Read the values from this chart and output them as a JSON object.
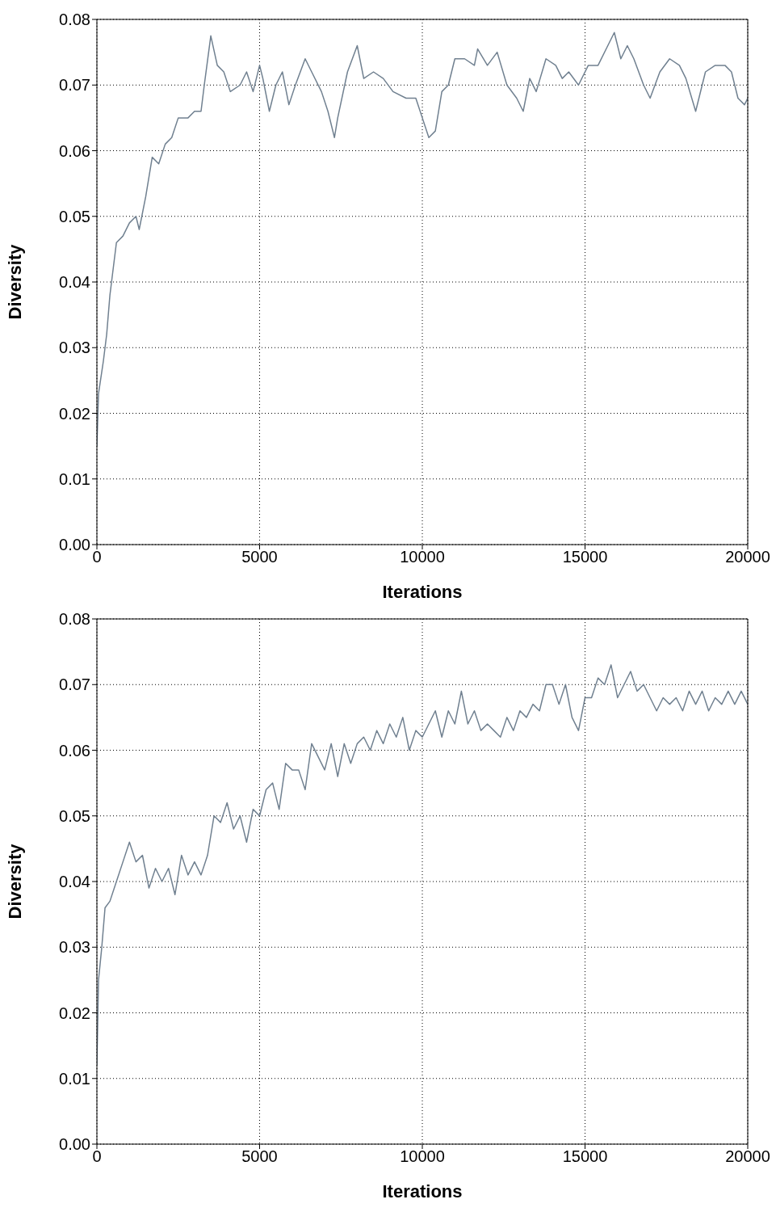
{
  "chart_data": [
    {
      "type": "line",
      "xlabel": "Iterations",
      "ylabel": "Diversity",
      "xlim": [
        0,
        20000
      ],
      "xticks": [
        0,
        5000,
        10000,
        15000,
        20000
      ],
      "ylim": [
        0,
        0.08
      ],
      "yticks": [
        {
          "value": 0,
          "label": "0.00"
        },
        {
          "value": 0.01,
          "label": "0.01"
        },
        {
          "value": 0.02,
          "label": "0.02"
        },
        {
          "value": 0.03,
          "label": "0.03"
        },
        {
          "value": 0.04,
          "label": "0.04"
        },
        {
          "value": 0.05,
          "label": "0.05"
        },
        {
          "value": 0.06,
          "label": "0.06"
        },
        {
          "value": 0.07,
          "label": "0.07"
        },
        {
          "value": 0.08,
          "label": "0.08"
        }
      ],
      "grid": true,
      "line_style": "solid",
      "marker": "none",
      "x": [
        0,
        50,
        200,
        300,
        400,
        500,
        600,
        800,
        1000,
        1200,
        1300,
        1500,
        1700,
        1900,
        2100,
        2300,
        2500,
        2800,
        3000,
        3200,
        3300,
        3500,
        3700,
        3900,
        4100,
        4400,
        4600,
        4800,
        5000,
        5100,
        5300,
        5500,
        5700,
        5900,
        6100,
        6400,
        6600,
        6900,
        7100,
        7300,
        7400,
        7700,
        8000,
        8200,
        8500,
        8800,
        9100,
        9500,
        9800,
        10000,
        10200,
        10400,
        10600,
        10800,
        11000,
        11300,
        11600,
        11700,
        12000,
        12300,
        12600,
        12900,
        13100,
        13300,
        13500,
        13800,
        14100,
        14300,
        14500,
        14800,
        15100,
        15400,
        15700,
        15900,
        16100,
        16300,
        16500,
        16800,
        17000,
        17300,
        17600,
        17900,
        18100,
        18400,
        18700,
        19000,
        19300,
        19500,
        19700,
        19900,
        20000
      ],
      "series": [
        {
          "color": "#708090",
          "values": [
            0.015,
            0.023,
            0.028,
            0.032,
            0.038,
            0.042,
            0.046,
            0.047,
            0.049,
            0.05,
            0.048,
            0.053,
            0.059,
            0.058,
            0.061,
            0.062,
            0.065,
            0.065,
            0.066,
            0.066,
            0.07,
            0.0775,
            0.073,
            0.072,
            0.069,
            0.07,
            0.072,
            0.069,
            0.073,
            0.071,
            0.066,
            0.07,
            0.072,
            0.067,
            0.07,
            0.074,
            0.072,
            0.069,
            0.066,
            0.062,
            0.065,
            0.072,
            0.076,
            0.071,
            0.072,
            0.071,
            0.069,
            0.068,
            0.068,
            0.065,
            0.062,
            0.063,
            0.069,
            0.07,
            0.074,
            0.074,
            0.073,
            0.0755,
            0.073,
            0.075,
            0.07,
            0.068,
            0.066,
            0.071,
            0.069,
            0.074,
            0.073,
            0.071,
            0.072,
            0.07,
            0.073,
            0.073,
            0.076,
            0.078,
            0.074,
            0.076,
            0.074,
            0.07,
            0.068,
            0.072,
            0.074,
            0.073,
            0.071,
            0.066,
            0.072,
            0.073,
            0.073,
            0.072,
            0.068,
            0.067,
            0.068
          ]
        }
      ]
    },
    {
      "type": "line",
      "xlabel": "Iterations",
      "ylabel": "Diversity",
      "xlim": [
        0,
        20000
      ],
      "xticks": [
        0,
        5000,
        10000,
        15000,
        20000
      ],
      "ylim": [
        0,
        0.08
      ],
      "yticks": [
        {
          "value": 0,
          "label": "0.00"
        },
        {
          "value": 0.01,
          "label": "0.01"
        },
        {
          "value": 0.02,
          "label": "0.02"
        },
        {
          "value": 0.03,
          "label": "0.03"
        },
        {
          "value": 0.04,
          "label": "0.04"
        },
        {
          "value": 0.05,
          "label": "0.05"
        },
        {
          "value": 0.06,
          "label": "0.06"
        },
        {
          "value": 0.07,
          "label": "0.07"
        },
        {
          "value": 0.08,
          "label": "0.08"
        }
      ],
      "grid": true,
      "line_style": "solid",
      "marker": "none",
      "x": [
        0,
        50,
        150,
        250,
        400,
        600,
        800,
        1000,
        1200,
        1400,
        1600,
        1800,
        2000,
        2200,
        2400,
        2600,
        2800,
        3000,
        3200,
        3400,
        3600,
        3800,
        4000,
        4200,
        4400,
        4600,
        4800,
        5000,
        5200,
        5400,
        5600,
        5800,
        6000,
        6200,
        6400,
        6600,
        6800,
        7000,
        7200,
        7400,
        7600,
        7800,
        8000,
        8200,
        8400,
        8600,
        8800,
        9000,
        9200,
        9400,
        9600,
        9800,
        10000,
        10200,
        10400,
        10600,
        10800,
        11000,
        11200,
        11400,
        11600,
        11800,
        12000,
        12200,
        12400,
        12600,
        12800,
        13000,
        13200,
        13400,
        13600,
        13800,
        14000,
        14200,
        14400,
        14600,
        14800,
        15000,
        15200,
        15400,
        15600,
        15800,
        16000,
        16200,
        16400,
        16600,
        16800,
        17000,
        17200,
        17400,
        17600,
        17800,
        18000,
        18200,
        18400,
        18600,
        18800,
        19000,
        19200,
        19400,
        19600,
        19800,
        20000
      ],
      "series": [
        {
          "color": "#708090",
          "values": [
            0.012,
            0.025,
            0.03,
            0.036,
            0.037,
            0.04,
            0.043,
            0.046,
            0.043,
            0.044,
            0.039,
            0.042,
            0.04,
            0.042,
            0.038,
            0.044,
            0.041,
            0.043,
            0.041,
            0.044,
            0.05,
            0.049,
            0.052,
            0.048,
            0.05,
            0.046,
            0.051,
            0.05,
            0.054,
            0.055,
            0.051,
            0.058,
            0.057,
            0.057,
            0.054,
            0.061,
            0.059,
            0.057,
            0.061,
            0.056,
            0.061,
            0.058,
            0.061,
            0.062,
            0.06,
            0.063,
            0.061,
            0.064,
            0.062,
            0.065,
            0.06,
            0.063,
            0.062,
            0.064,
            0.066,
            0.062,
            0.066,
            0.064,
            0.069,
            0.064,
            0.066,
            0.063,
            0.064,
            0.063,
            0.062,
            0.065,
            0.063,
            0.066,
            0.065,
            0.067,
            0.066,
            0.07,
            0.07,
            0.067,
            0.07,
            0.065,
            0.063,
            0.068,
            0.068,
            0.071,
            0.07,
            0.073,
            0.068,
            0.07,
            0.072,
            0.069,
            0.07,
            0.068,
            0.066,
            0.068,
            0.067,
            0.068,
            0.066,
            0.069,
            0.067,
            0.069,
            0.066,
            0.068,
            0.067,
            0.069,
            0.067,
            0.069,
            0.067
          ]
        }
      ]
    }
  ]
}
